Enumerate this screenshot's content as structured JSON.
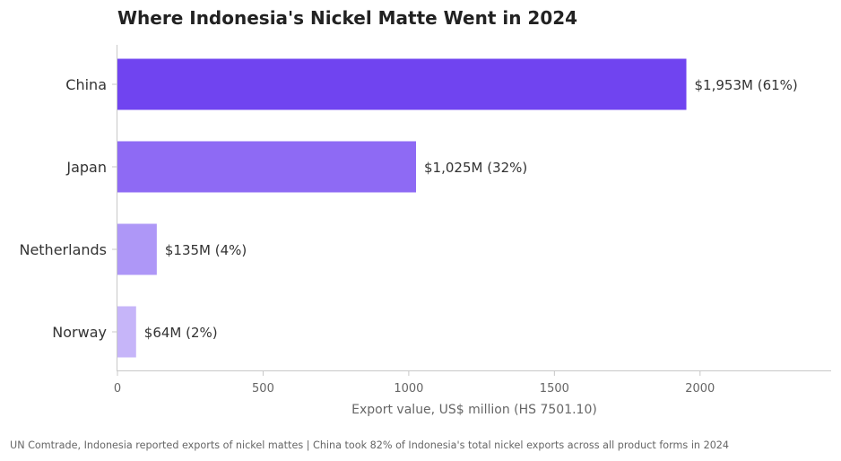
{
  "chart_data": {
    "type": "bar",
    "orientation": "horizontal",
    "title": "Where Indonesia's Nickel Matte Went in 2024",
    "xlabel": "Export value, US$ million (HS 7501.10)",
    "ylabel": "",
    "categories": [
      "China",
      "Japan",
      "Netherlands",
      "Norway"
    ],
    "values": [
      1953,
      1025,
      135,
      64
    ],
    "data_labels": [
      "$1,953M  (61%)",
      "$1,025M  (32%)",
      "$135M  (4%)",
      "$64M  (2%)"
    ],
    "colors": [
      "#7044f0",
      "#8e6af4",
      "#ae97f7",
      "#c6b5f9"
    ],
    "xlim": [
      0,
      2450
    ],
    "xticks": [
      0,
      500,
      1000,
      1500,
      2000
    ],
    "grid": false,
    "source_note": "UN Comtrade, Indonesia reported exports of nickel mattes  |  China took 82% of Indonesia's total nickel exports across all product forms in 2024"
  }
}
